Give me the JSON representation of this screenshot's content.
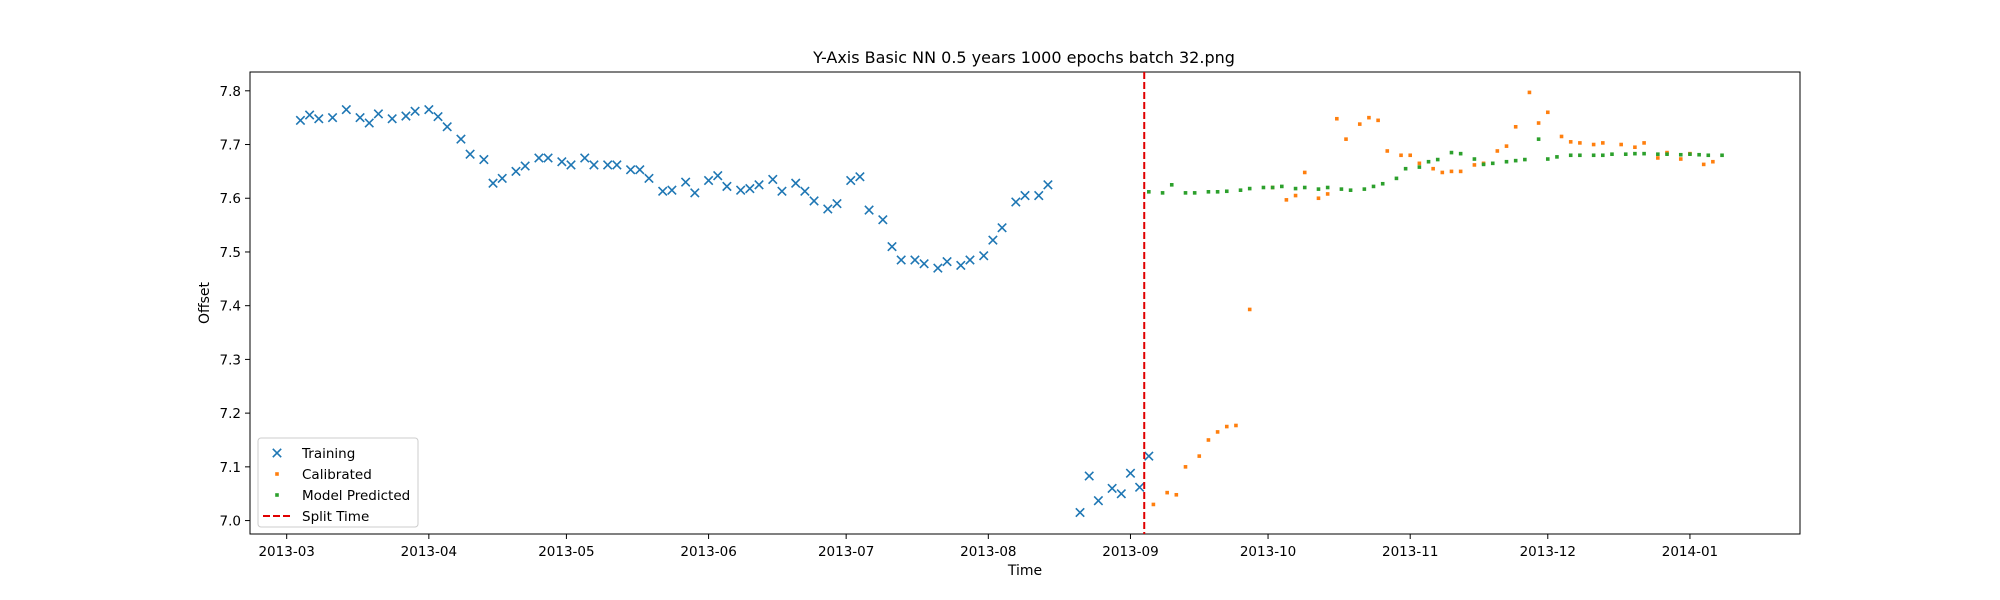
{
  "chart_data": {
    "type": "scatter",
    "title": "Y-Axis Basic NN 0.5 years 1000 epochs batch 32.png",
    "xlabel": "Time",
    "ylabel": "Offset",
    "x_ticks": [
      "2013-03",
      "2013-04",
      "2013-05",
      "2013-06",
      "2013-07",
      "2013-08",
      "2013-09",
      "2013-10",
      "2013-11",
      "2013-12",
      "2014-01"
    ],
    "y_ticks": [
      "7.0",
      "7.1",
      "7.2",
      "7.3",
      "7.4",
      "7.5",
      "7.6",
      "7.7",
      "7.8"
    ],
    "xlim": [
      "2013-02-21",
      "2014-01-25"
    ],
    "ylim": [
      6.975,
      7.835
    ],
    "grid": false,
    "legend_position": "lower left",
    "split_time": "2013-09-04",
    "series": [
      {
        "name": "Training",
        "marker": "x",
        "color": "#1f77b4",
        "points": [
          [
            "2013-03-04",
            7.745
          ],
          [
            "2013-03-06",
            7.755
          ],
          [
            "2013-03-08",
            7.748
          ],
          [
            "2013-03-11",
            7.75
          ],
          [
            "2013-03-14",
            7.765
          ],
          [
            "2013-03-17",
            7.75
          ],
          [
            "2013-03-19",
            7.74
          ],
          [
            "2013-03-21",
            7.757
          ],
          [
            "2013-03-24",
            7.748
          ],
          [
            "2013-03-27",
            7.753
          ],
          [
            "2013-03-29",
            7.762
          ],
          [
            "2013-04-01",
            7.765
          ],
          [
            "2013-04-03",
            7.752
          ],
          [
            "2013-04-05",
            7.733
          ],
          [
            "2013-04-08",
            7.71
          ],
          [
            "2013-04-10",
            7.682
          ],
          [
            "2013-04-13",
            7.672
          ],
          [
            "2013-04-15",
            7.628
          ],
          [
            "2013-04-17",
            7.637
          ],
          [
            "2013-04-20",
            7.65
          ],
          [
            "2013-04-22",
            7.66
          ],
          [
            "2013-04-25",
            7.675
          ],
          [
            "2013-04-27",
            7.675
          ],
          [
            "2013-04-30",
            7.668
          ],
          [
            "2013-05-02",
            7.662
          ],
          [
            "2013-05-05",
            7.675
          ],
          [
            "2013-05-07",
            7.662
          ],
          [
            "2013-05-10",
            7.662
          ],
          [
            "2013-05-12",
            7.662
          ],
          [
            "2013-05-15",
            7.653
          ],
          [
            "2013-05-17",
            7.653
          ],
          [
            "2013-05-19",
            7.637
          ],
          [
            "2013-05-22",
            7.613
          ],
          [
            "2013-05-24",
            7.615
          ],
          [
            "2013-05-27",
            7.63
          ],
          [
            "2013-05-29",
            7.61
          ],
          [
            "2013-06-01",
            7.633
          ],
          [
            "2013-06-03",
            7.642
          ],
          [
            "2013-06-05",
            7.622
          ],
          [
            "2013-06-08",
            7.615
          ],
          [
            "2013-06-10",
            7.618
          ],
          [
            "2013-06-12",
            7.625
          ],
          [
            "2013-06-15",
            7.635
          ],
          [
            "2013-06-17",
            7.613
          ],
          [
            "2013-06-20",
            7.628
          ],
          [
            "2013-06-22",
            7.613
          ],
          [
            "2013-06-24",
            7.595
          ],
          [
            "2013-06-27",
            7.58
          ],
          [
            "2013-06-29",
            7.59
          ],
          [
            "2013-07-02",
            7.633
          ],
          [
            "2013-07-04",
            7.64
          ],
          [
            "2013-07-06",
            7.578
          ],
          [
            "2013-07-09",
            7.56
          ],
          [
            "2013-07-11",
            7.51
          ],
          [
            "2013-07-13",
            7.485
          ],
          [
            "2013-07-16",
            7.485
          ],
          [
            "2013-07-18",
            7.478
          ],
          [
            "2013-07-21",
            7.47
          ],
          [
            "2013-07-23",
            7.482
          ],
          [
            "2013-07-26",
            7.475
          ],
          [
            "2013-07-28",
            7.485
          ],
          [
            "2013-07-31",
            7.493
          ],
          [
            "2013-08-02",
            7.522
          ],
          [
            "2013-08-04",
            7.545
          ],
          [
            "2013-08-07",
            7.593
          ],
          [
            "2013-08-09",
            7.605
          ],
          [
            "2013-08-12",
            7.605
          ],
          [
            "2013-08-14",
            7.625
          ],
          [
            "2013-08-21",
            7.015
          ],
          [
            "2013-08-23",
            7.083
          ],
          [
            "2013-08-25",
            7.037
          ],
          [
            "2013-08-28",
            7.06
          ],
          [
            "2013-08-30",
            7.05
          ],
          [
            "2013-09-01",
            7.088
          ],
          [
            "2013-09-03",
            7.062
          ],
          [
            "2013-09-05",
            7.12
          ]
        ]
      },
      {
        "name": "Calibrated",
        "marker": "dot",
        "color": "#ff7f0e",
        "points": [
          [
            "2013-09-06",
            7.03
          ],
          [
            "2013-09-09",
            7.052
          ],
          [
            "2013-09-11",
            7.048
          ],
          [
            "2013-09-13",
            7.1
          ],
          [
            "2013-09-16",
            7.12
          ],
          [
            "2013-09-18",
            7.15
          ],
          [
            "2013-09-20",
            7.165
          ],
          [
            "2013-09-22",
            7.175
          ],
          [
            "2013-09-24",
            7.177
          ],
          [
            "2013-09-27",
            7.393
          ],
          [
            "2013-10-02",
            7.62
          ],
          [
            "2013-10-05",
            7.597
          ],
          [
            "2013-10-07",
            7.605
          ],
          [
            "2013-10-09",
            7.648
          ],
          [
            "2013-10-12",
            7.6
          ],
          [
            "2013-10-14",
            7.608
          ],
          [
            "2013-10-16",
            7.748
          ],
          [
            "2013-10-18",
            7.71
          ],
          [
            "2013-10-21",
            7.738
          ],
          [
            "2013-10-23",
            7.75
          ],
          [
            "2013-10-25",
            7.745
          ],
          [
            "2013-10-27",
            7.688
          ],
          [
            "2013-10-30",
            7.68
          ],
          [
            "2013-11-01",
            7.68
          ],
          [
            "2013-11-03",
            7.665
          ],
          [
            "2013-11-06",
            7.655
          ],
          [
            "2013-11-08",
            7.648
          ],
          [
            "2013-11-10",
            7.65
          ],
          [
            "2013-11-12",
            7.65
          ],
          [
            "2013-11-15",
            7.662
          ],
          [
            "2013-11-17",
            7.665
          ],
          [
            "2013-11-20",
            7.688
          ],
          [
            "2013-11-22",
            7.697
          ],
          [
            "2013-11-24",
            7.733
          ],
          [
            "2013-11-27",
            7.797
          ],
          [
            "2013-11-29",
            7.74
          ],
          [
            "2013-12-01",
            7.76
          ],
          [
            "2013-12-04",
            7.715
          ],
          [
            "2013-12-06",
            7.705
          ],
          [
            "2013-12-08",
            7.703
          ],
          [
            "2013-12-11",
            7.7
          ],
          [
            "2013-12-13",
            7.703
          ],
          [
            "2013-12-17",
            7.7
          ],
          [
            "2013-12-20",
            7.695
          ],
          [
            "2013-12-22",
            7.703
          ],
          [
            "2013-12-25",
            7.675
          ],
          [
            "2013-12-27",
            7.685
          ],
          [
            "2013-12-30",
            7.673
          ],
          [
            "2014-01-01",
            7.683
          ],
          [
            "2014-01-04",
            7.663
          ],
          [
            "2014-01-06",
            7.668
          ]
        ]
      },
      {
        "name": "Model Predicted",
        "marker": "dot",
        "color": "#2ca02c",
        "points": [
          [
            "2013-09-05",
            7.612
          ],
          [
            "2013-09-08",
            7.61
          ],
          [
            "2013-09-10",
            7.625
          ],
          [
            "2013-09-13",
            7.61
          ],
          [
            "2013-09-15",
            7.61
          ],
          [
            "2013-09-18",
            7.612
          ],
          [
            "2013-09-20",
            7.612
          ],
          [
            "2013-09-22",
            7.613
          ],
          [
            "2013-09-25",
            7.615
          ],
          [
            "2013-09-27",
            7.618
          ],
          [
            "2013-09-30",
            7.62
          ],
          [
            "2013-10-02",
            7.62
          ],
          [
            "2013-10-04",
            7.622
          ],
          [
            "2013-10-07",
            7.618
          ],
          [
            "2013-10-09",
            7.62
          ],
          [
            "2013-10-12",
            7.617
          ],
          [
            "2013-10-14",
            7.62
          ],
          [
            "2013-10-17",
            7.617
          ],
          [
            "2013-10-19",
            7.615
          ],
          [
            "2013-10-22",
            7.617
          ],
          [
            "2013-10-24",
            7.622
          ],
          [
            "2013-10-26",
            7.627
          ],
          [
            "2013-10-29",
            7.637
          ],
          [
            "2013-10-31",
            7.655
          ],
          [
            "2013-11-03",
            7.658
          ],
          [
            "2013-11-05",
            7.668
          ],
          [
            "2013-11-07",
            7.672
          ],
          [
            "2013-11-10",
            7.685
          ],
          [
            "2013-11-12",
            7.683
          ],
          [
            "2013-11-15",
            7.673
          ],
          [
            "2013-11-17",
            7.663
          ],
          [
            "2013-11-19",
            7.665
          ],
          [
            "2013-11-22",
            7.668
          ],
          [
            "2013-11-24",
            7.67
          ],
          [
            "2013-11-26",
            7.672
          ],
          [
            "2013-11-29",
            7.71
          ],
          [
            "2013-12-01",
            7.673
          ],
          [
            "2013-12-03",
            7.677
          ],
          [
            "2013-12-06",
            7.68
          ],
          [
            "2013-12-08",
            7.68
          ],
          [
            "2013-12-11",
            7.68
          ],
          [
            "2013-12-13",
            7.68
          ],
          [
            "2013-12-15",
            7.682
          ],
          [
            "2013-12-18",
            7.682
          ],
          [
            "2013-12-20",
            7.683
          ],
          [
            "2013-12-22",
            7.683
          ],
          [
            "2013-12-25",
            7.682
          ],
          [
            "2013-12-27",
            7.682
          ],
          [
            "2013-12-30",
            7.681
          ],
          [
            "2014-01-01",
            7.682
          ],
          [
            "2014-01-03",
            7.681
          ],
          [
            "2014-01-05",
            7.68
          ],
          [
            "2014-01-08",
            7.68
          ]
        ]
      },
      {
        "name": "Split Time",
        "marker": "dashed-line",
        "color": "#e00000"
      }
    ]
  }
}
